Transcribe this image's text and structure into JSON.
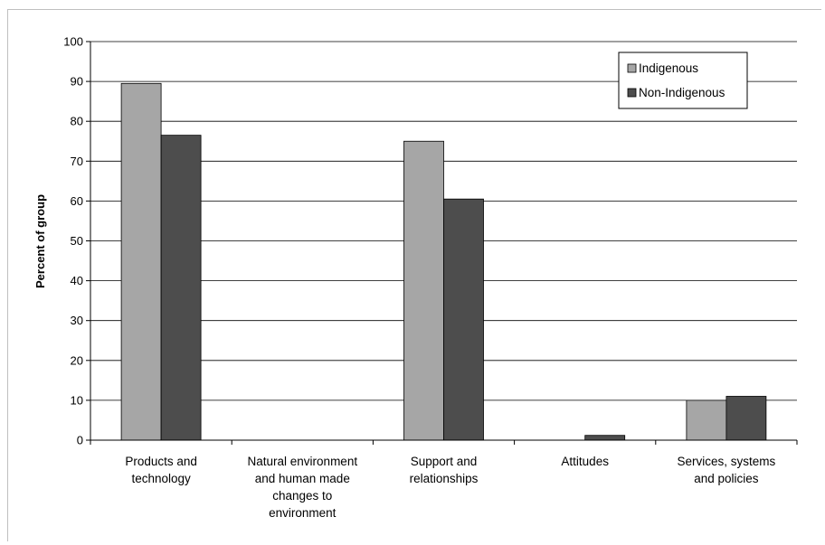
{
  "chart_data": {
    "type": "bar",
    "ylabel": "Percent of group",
    "xlabel": "",
    "ylim": [
      0,
      100
    ],
    "yticks": [
      0,
      10,
      20,
      30,
      40,
      50,
      60,
      70,
      80,
      90,
      100
    ],
    "categories": [
      [
        "Products and",
        "technology"
      ],
      [
        "Natural environment",
        "and human made",
        "changes to",
        "environment"
      ],
      [
        "Support and",
        "relationships"
      ],
      [
        "Attitudes"
      ],
      [
        "Services, systems",
        "and policies"
      ]
    ],
    "series": [
      {
        "name": "Indigenous",
        "color": "#a6a6a6",
        "values": [
          89.5,
          0,
          75,
          0,
          10
        ]
      },
      {
        "name": "Non-Indigenous",
        "color": "#4d4d4d",
        "values": [
          76.5,
          0,
          60.5,
          1.2,
          11
        ]
      }
    ],
    "legend_position": "top-right",
    "grid": true
  }
}
